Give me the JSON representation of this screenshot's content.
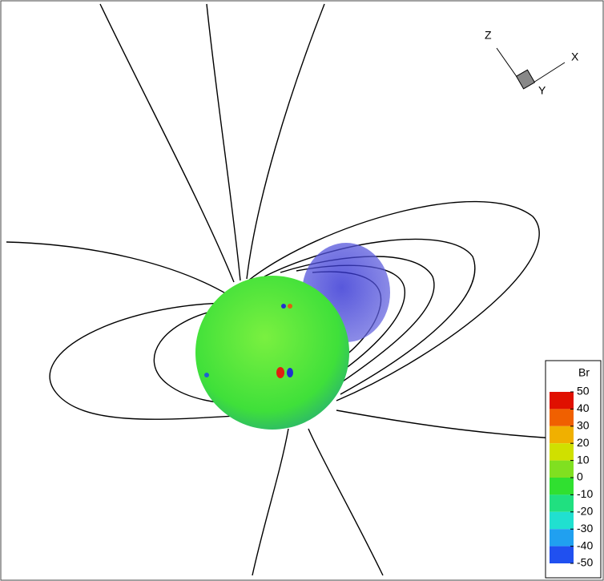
{
  "axes_triad": {
    "labels": [
      "Z",
      "X",
      "Y"
    ]
  },
  "legend": {
    "title": "Br",
    "ticks": [
      50,
      40,
      30,
      20,
      10,
      0,
      -10,
      -20,
      -30,
      -40,
      -50
    ]
  }
}
